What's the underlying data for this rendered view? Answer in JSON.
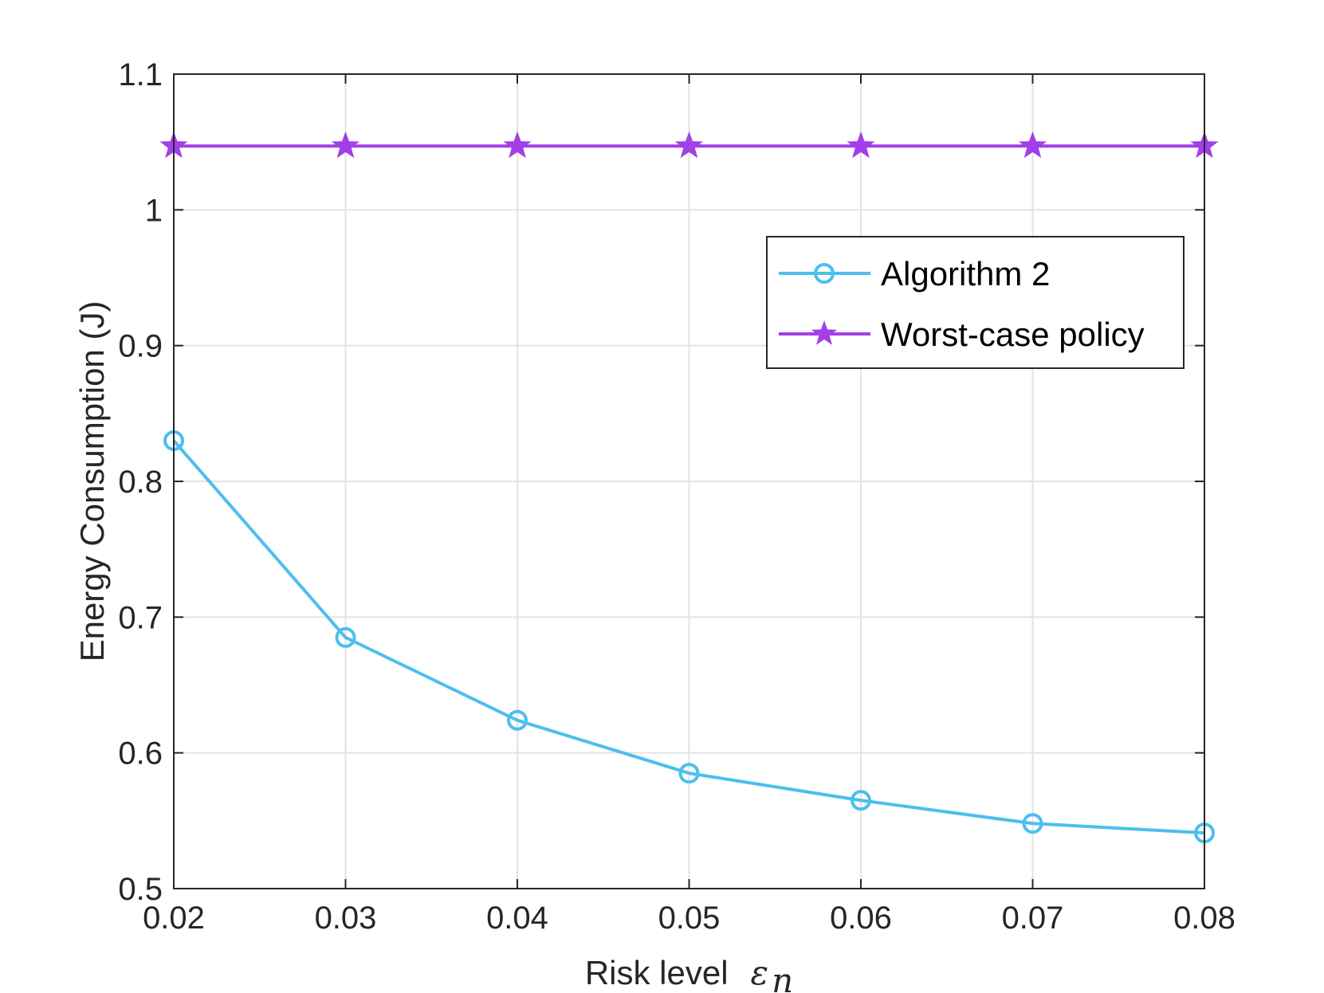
{
  "chart_data": {
    "type": "line",
    "title": "",
    "xlabel": "Risk level",
    "xlabel_symbol": "ε",
    "xlabel_symbol_sub": "n",
    "ylabel": "Energy Consumption (J)",
    "xlim": [
      0.02,
      0.08
    ],
    "ylim": [
      0.5,
      1.1
    ],
    "x": [
      0.02,
      0.03,
      0.04,
      0.05,
      0.06,
      0.07,
      0.08
    ],
    "xticks": [
      "0.02",
      "0.03",
      "0.04",
      "0.05",
      "0.06",
      "0.07",
      "0.08"
    ],
    "yticks": [
      "0.5",
      "0.6",
      "0.7",
      "0.8",
      "0.9",
      "1",
      "1.1"
    ],
    "ytick_values": [
      0.5,
      0.6,
      0.7,
      0.8,
      0.9,
      1.0,
      1.1
    ],
    "grid": true,
    "legend_position": "top-right",
    "series": [
      {
        "name": "Algorithm 2",
        "marker": "circle",
        "color": "#4dbeee",
        "values": [
          0.83,
          0.685,
          0.624,
          0.585,
          0.565,
          0.548,
          0.541
        ]
      },
      {
        "name": "Worst-case policy",
        "marker": "star",
        "color": "#a33ee8",
        "values": [
          1.047,
          1.047,
          1.047,
          1.047,
          1.047,
          1.047,
          1.047
        ]
      }
    ]
  }
}
